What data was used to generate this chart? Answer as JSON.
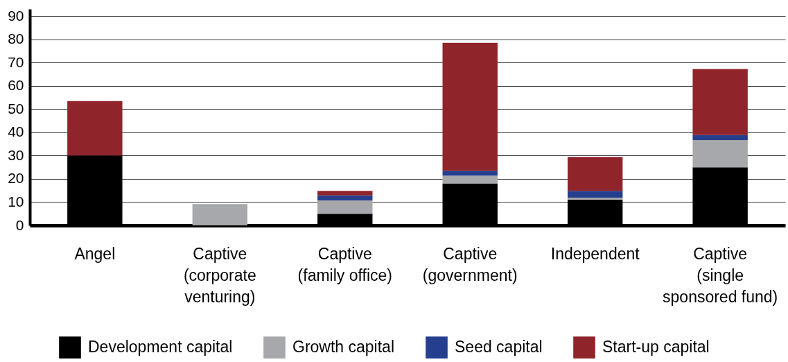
{
  "chart_data": {
    "type": "bar",
    "stacked": true,
    "categories": [
      "Angel",
      "Captive\n(corporate\nventuring)",
      "Captive\n(family office)",
      "Captive\n(government)",
      "Independent",
      "Captive\n(single\nsponsored fund)"
    ],
    "series": [
      {
        "name": "Development capital",
        "color": "#000000",
        "values": [
          30,
          null,
          5,
          18,
          11.1,
          25
        ]
      },
      {
        "name": "Growth capital",
        "color": "#a7a8ab",
        "values": [
          null,
          9.2,
          5.7,
          3.4,
          0.8,
          11.7
        ]
      },
      {
        "name": "Seed capital",
        "color": "#253f8e",
        "values": [
          null,
          null,
          2.2,
          2.1,
          2.9,
          2.1
        ]
      },
      {
        "name": "Start-up capital",
        "color": "#8f252b",
        "values": [
          23.4,
          null,
          1.9,
          55,
          14.6,
          28.4
        ]
      }
    ],
    "ylim": [
      0,
      93
    ],
    "yticks": [
      0,
      10,
      20,
      30,
      40,
      50,
      60,
      70,
      80,
      90
    ],
    "grid": "y",
    "legend": "bottom"
  }
}
